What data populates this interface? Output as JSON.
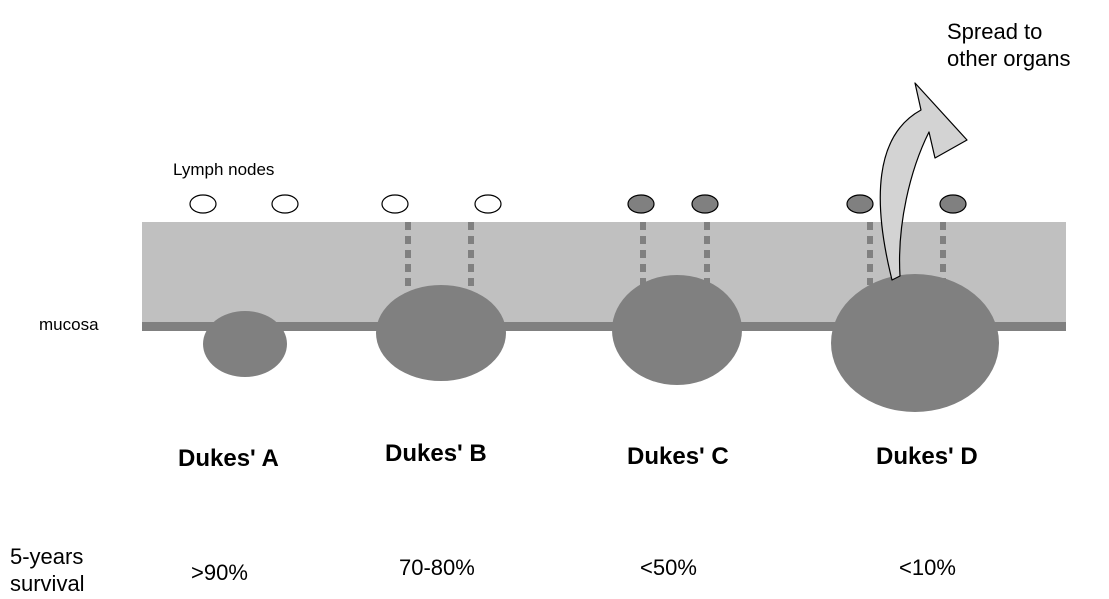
{
  "labels": {
    "lymph_nodes": "Lymph nodes",
    "mucosa": "mucosa",
    "spread_line1": "Spread to",
    "spread_line2": "other organs",
    "survival_line1": "5-years",
    "survival_line2": "survival"
  },
  "stages": [
    {
      "name": "Dukes' A",
      "survival": ">90%",
      "nodes_involved": false,
      "invasion": "within mucosa"
    },
    {
      "name": "Dukes' B",
      "survival": "70-80%",
      "nodes_involved": false,
      "invasion": "through bowel wall"
    },
    {
      "name": "Dukes' C",
      "survival": "<50%",
      "nodes_involved": true,
      "invasion": "through bowel wall"
    },
    {
      "name": "Dukes' D",
      "survival": "<10%",
      "nodes_involved": true,
      "invasion": "distant spread"
    }
  ],
  "colors": {
    "bowel_wall": "#c0c0c0",
    "mucosa_line": "#808080",
    "tumour": "#808080",
    "node_clear": "#ffffff",
    "node_involved": "#808080",
    "arrow_fill": "#d3d3d3",
    "outline": "#000000"
  }
}
